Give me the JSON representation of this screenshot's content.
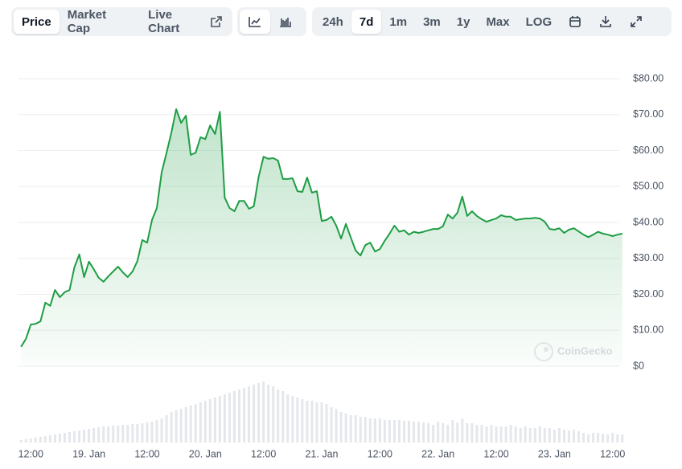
{
  "toolbar": {
    "tabs": [
      "Price",
      "Market Cap",
      "Live Chart"
    ],
    "ranges": [
      "24h",
      "7d",
      "1m",
      "3m",
      "1y",
      "Max",
      "LOG"
    ]
  },
  "chart_data": {
    "type": "line",
    "watermark": "CoinGecko",
    "color": "#1f9d45",
    "volume_color": "#e4e7eb",
    "x": [
      10,
      11,
      12,
      13,
      14,
      15,
      16,
      17,
      18,
      19,
      20,
      21,
      22,
      23,
      24,
      25,
      26,
      27,
      28,
      29,
      30,
      31,
      32,
      33,
      34,
      35,
      36,
      37,
      38,
      39,
      40,
      41,
      42,
      43,
      44,
      45,
      46,
      47,
      48,
      49,
      50,
      51,
      52,
      53,
      54,
      55,
      56,
      57,
      58,
      59,
      60,
      61,
      62,
      63,
      64,
      65,
      66,
      67,
      68,
      69,
      70,
      71,
      72,
      73,
      74,
      75,
      76,
      77,
      78,
      79,
      80,
      81,
      82,
      83,
      84,
      85,
      86,
      87,
      88,
      89,
      90,
      91,
      92,
      93,
      94,
      95,
      96,
      97,
      98,
      99,
      100,
      101,
      102,
      103,
      104,
      105,
      106,
      107,
      108,
      109,
      110,
      111,
      112,
      113,
      114,
      115,
      116,
      117,
      118,
      119,
      120,
      121,
      122,
      123,
      124,
      125,
      126,
      127,
      128,
      129,
      130,
      131,
      132,
      133,
      134
    ],
    "values": [
      5.4,
      7.6,
      11.6,
      11.8,
      12.5,
      17.7,
      16.8,
      21.2,
      19.2,
      20.6,
      21.2,
      27.5,
      31.1,
      24.8,
      29.1,
      27.0,
      24.6,
      23.5,
      25.0,
      26.4,
      27.7,
      26.1,
      24.8,
      26.4,
      29.3,
      35.1,
      34.4,
      40.7,
      44.0,
      53.9,
      59.4,
      65.0,
      71.5,
      67.7,
      69.7,
      58.8,
      59.4,
      63.7,
      63.2,
      67.0,
      64.6,
      70.8,
      46.9,
      44.0,
      43.1,
      46.0,
      46.0,
      43.8,
      44.5,
      52.7,
      58.3,
      57.7,
      57.9,
      57.2,
      52.1,
      52.1,
      52.3,
      48.7,
      48.5,
      52.5,
      48.3,
      48.7,
      40.4,
      40.7,
      41.6,
      39.1,
      35.5,
      39.6,
      35.8,
      32.2,
      30.8,
      33.7,
      34.4,
      31.9,
      32.6,
      34.9,
      36.9,
      39.1,
      37.4,
      37.8,
      36.6,
      37.4,
      37.1,
      37.4,
      37.8,
      38.2,
      38.2,
      38.9,
      42.2,
      41.1,
      42.7,
      47.2,
      41.8,
      43.1,
      41.8,
      40.9,
      40.2,
      40.7,
      41.1,
      42.0,
      41.6,
      41.6,
      40.7,
      40.9,
      41.1,
      41.1,
      41.3,
      41.1,
      40.2,
      38.2,
      38.0,
      38.4,
      37.1,
      38.0,
      38.4,
      37.5,
      36.6,
      35.9,
      36.6,
      37.4,
      36.9,
      36.6,
      36.2,
      36.6,
      36.9
    ],
    "volume": [
      3,
      4,
      5,
      6,
      7,
      8,
      9,
      10,
      11,
      12,
      13,
      14,
      15,
      16,
      17,
      18,
      19,
      20,
      20,
      21,
      21,
      22,
      22,
      23,
      23,
      24,
      25,
      26,
      28,
      30,
      34,
      38,
      40,
      42,
      44,
      46,
      48,
      50,
      52,
      54,
      56,
      58,
      60,
      62,
      64,
      66,
      68,
      70,
      72,
      74,
      76,
      72,
      70,
      66,
      64,
      60,
      58,
      56,
      54,
      52,
      52,
      50,
      50,
      48,
      44,
      42,
      38,
      36,
      34,
      34,
      32,
      32,
      30,
      30,
      30,
      28,
      28,
      28,
      28,
      27,
      27,
      26,
      26,
      25,
      24,
      22,
      26,
      24,
      22,
      28,
      25,
      30,
      24,
      24,
      22,
      22,
      20,
      22,
      20,
      20,
      20,
      22,
      20,
      18,
      20,
      18,
      18,
      20,
      18,
      18,
      16,
      18,
      16,
      15,
      16,
      14,
      12,
      10,
      12,
      12,
      11,
      10,
      12,
      10,
      10
    ],
    "xlim": [
      9.8,
      134.2
    ],
    "xticks": [
      {
        "value": 12,
        "label": "12:00"
      },
      {
        "value": 24,
        "label": "19. Jan"
      },
      {
        "value": 36,
        "label": "12:00"
      },
      {
        "value": 48,
        "label": "20. Jan"
      },
      {
        "value": 60,
        "label": "12:00"
      },
      {
        "value": 72,
        "label": "21. Jan"
      },
      {
        "value": 84,
        "label": "12:00"
      },
      {
        "value": 96,
        "label": "22. Jan"
      },
      {
        "value": 108,
        "label": "12:00"
      },
      {
        "value": 120,
        "label": "23. Jan"
      },
      {
        "value": 132,
        "label": "12:00"
      }
    ],
    "ylim": [
      0,
      80
    ],
    "yticks": [
      {
        "value": 0,
        "label": "$0"
      },
      {
        "value": 10,
        "label": "$10.00"
      },
      {
        "value": 20,
        "label": "$20.00"
      },
      {
        "value": 30,
        "label": "$30.00"
      },
      {
        "value": 40,
        "label": "$40.00"
      },
      {
        "value": 50,
        "label": "$50.00"
      },
      {
        "value": 60,
        "label": "$60.00"
      },
      {
        "value": 70,
        "label": "$70.00"
      },
      {
        "value": 80,
        "label": "$80.00"
      }
    ],
    "grid": true
  }
}
